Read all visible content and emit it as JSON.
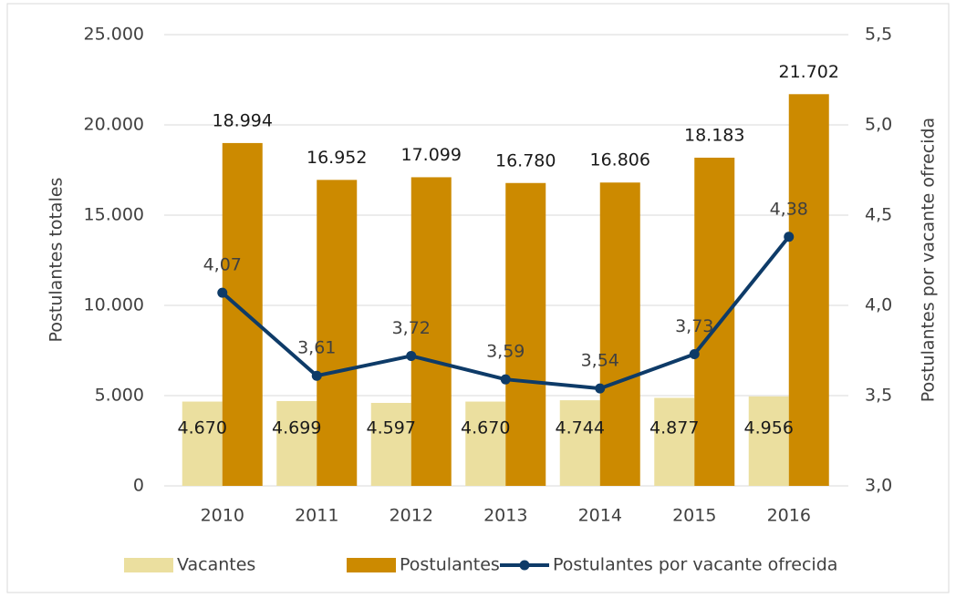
{
  "chart_data": {
    "type": "bar",
    "categories": [
      "2010",
      "2011",
      "2012",
      "2013",
      "2014",
      "2015",
      "2016"
    ],
    "ylabel": "Postulantes totales",
    "y2label": "Postulantes por vacante ofrecida",
    "ylim": [
      0,
      25000
    ],
    "yticks": [
      0,
      {
        "value": 5000,
        "label": "5.000"
      },
      {
        "value": 10000,
        "label": "10.000"
      },
      {
        "value": 15000,
        "label": "15.000"
      },
      {
        "value": 20000,
        "label": "20.000"
      },
      {
        "value": 25000,
        "label": "25.000"
      }
    ],
    "y2lim": [
      3.0,
      5.5
    ],
    "y2ticks": [
      {
        "value": 3.0,
        "label": "3,0"
      },
      {
        "value": 3.5,
        "label": "3,5"
      },
      {
        "value": 4.0,
        "label": "4,0"
      },
      {
        "value": 4.5,
        "label": "4,5"
      },
      {
        "value": 5.0,
        "label": "5,0"
      },
      {
        "value": 5.5,
        "label": "5,5"
      }
    ],
    "grid": true,
    "legend": "bottom",
    "series": [
      {
        "name": "Vacantes",
        "type": "bar",
        "color": "#ebdf9f",
        "values": [
          4670,
          4699,
          4597,
          4670,
          4744,
          4877,
          4956
        ],
        "value_labels": [
          "4.670",
          "4.699",
          "4.597",
          "4.670",
          "4.744",
          "4.877",
          "4.956"
        ]
      },
      {
        "name": "Postulantes",
        "type": "bar",
        "color": "#cc8a00",
        "values": [
          18994,
          16952,
          17099,
          16780,
          16806,
          18183,
          21702
        ],
        "value_labels": [
          "18.994",
          "16.952",
          "17.099",
          "16.780",
          "16.806",
          "18.183",
          "21.702"
        ]
      },
      {
        "name": "Postulantes por vacante ofrecida",
        "type": "line",
        "axis": "y2",
        "color": "#0e3b68",
        "values": [
          4.07,
          3.61,
          3.72,
          3.59,
          3.54,
          3.73,
          4.38
        ],
        "value_labels": [
          "4,07",
          "3,61",
          "3,72",
          "3,59",
          "3,54",
          "3,73",
          "4,38"
        ]
      }
    ]
  }
}
